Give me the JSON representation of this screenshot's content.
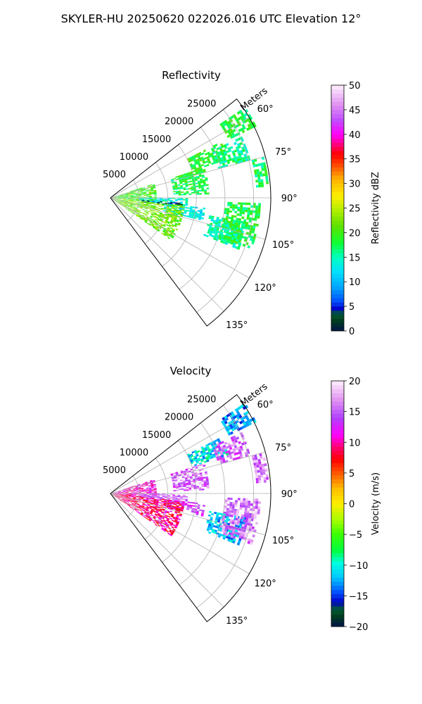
{
  "figure": {
    "suptitle": "SKYLER-HU  20250620  022026.016 UTC Elevation 12°"
  },
  "chart_data": [
    {
      "type": "heatmap",
      "projection": "polar-sector",
      "title": "Reflectivity",
      "range_axis_label": "Meters",
      "range_ticks": [
        5000,
        10000,
        15000,
        20000,
        25000
      ],
      "range_tick_labels": [
        "5000",
        "10000",
        "15000",
        "20000",
        "25000"
      ],
      "range_max": 28000,
      "azimuth_range_deg": [
        52,
        143
      ],
      "azimuth_ticks": [
        60,
        75,
        90,
        105,
        120,
        135
      ],
      "azimuth_tick_labels": [
        "60°",
        "75°",
        "90°",
        "105°",
        "120°",
        "135°"
      ],
      "grid": true,
      "colorbar": {
        "label": "Reflectivity dBZ",
        "min": 0,
        "max": 50,
        "ticks": [
          0,
          5,
          10,
          15,
          20,
          25,
          30,
          35,
          40,
          45,
          50
        ],
        "tick_labels": [
          "0",
          "5",
          "10",
          "15",
          "20",
          "25",
          "30",
          "35",
          "40",
          "45",
          "50"
        ]
      },
      "echo_regions": [
        {
          "az": [
            56,
            64
          ],
          "r": [
            23000,
            28000
          ],
          "value": 18
        },
        {
          "az": [
            63,
            72
          ],
          "r": [
            15000,
            21500
          ],
          "value": 19
        },
        {
          "az": [
            65,
            75
          ],
          "r": [
            19500,
            25000
          ],
          "value": 16
        },
        {
          "az": [
            72,
            88
          ],
          "r": [
            11000,
            17000
          ],
          "value": 18
        },
        {
          "az": [
            75,
            86
          ],
          "r": [
            25500,
            27500
          ],
          "value": 17
        },
        {
          "az": [
            72,
            97
          ],
          "r": [
            0,
            8000
          ],
          "value": 20
        },
        {
          "az": [
            90,
            96
          ],
          "r": [
            5000,
            13500
          ],
          "value": 14
        },
        {
          "az": [
            94,
            98
          ],
          "r": [
            5500,
            12500
          ],
          "value": 4
        },
        {
          "az": [
            96,
            104
          ],
          "r": [
            9500,
            16500
          ],
          "value": 13
        },
        {
          "az": [
            96,
            125
          ],
          "r": [
            0,
            13000
          ],
          "value": 22
        },
        {
          "az": [
            100,
            112
          ],
          "r": [
            17500,
            24000
          ],
          "value": 15
        },
        {
          "az": [
            92,
            110
          ],
          "r": [
            20000,
            26000
          ],
          "value": 18
        }
      ]
    },
    {
      "type": "heatmap",
      "projection": "polar-sector",
      "title": "Velocity",
      "range_axis_label": "Meters",
      "range_ticks": [
        5000,
        10000,
        15000,
        20000,
        25000
      ],
      "range_tick_labels": [
        "5000",
        "10000",
        "15000",
        "20000",
        "25000"
      ],
      "range_max": 28000,
      "azimuth_range_deg": [
        52,
        143
      ],
      "azimuth_ticks": [
        60,
        75,
        90,
        105,
        120,
        135
      ],
      "azimuth_tick_labels": [
        "60°",
        "75°",
        "90°",
        "105°",
        "120°",
        "135°"
      ],
      "grid": true,
      "colorbar": {
        "label": "Velocity (m/s)",
        "min": -20,
        "max": 20,
        "ticks": [
          -20,
          -15,
          -10,
          -5,
          0,
          5,
          10,
          15,
          20
        ],
        "tick_labels": [
          "−20",
          "−15",
          "−10",
          "−5",
          "0",
          "5",
          "10",
          "15",
          "20"
        ]
      },
      "echo_regions": [
        {
          "az": [
            56,
            64
          ],
          "r": [
            23000,
            28000
          ],
          "value": -13
        },
        {
          "az": [
            63,
            72
          ],
          "r": [
            15000,
            21500
          ],
          "value": -11
        },
        {
          "az": [
            65,
            75
          ],
          "r": [
            19500,
            25000
          ],
          "value": 15
        },
        {
          "az": [
            72,
            88
          ],
          "r": [
            11000,
            17000
          ],
          "value": 15
        },
        {
          "az": [
            75,
            86
          ],
          "r": [
            25500,
            27500
          ],
          "value": 16
        },
        {
          "az": [
            72,
            97
          ],
          "r": [
            0,
            8000
          ],
          "value": 11
        },
        {
          "az": [
            90,
            96
          ],
          "r": [
            5000,
            13500
          ],
          "value": 15
        },
        {
          "az": [
            94,
            98
          ],
          "r": [
            5500,
            12500
          ],
          "value": 17
        },
        {
          "az": [
            96,
            104
          ],
          "r": [
            9500,
            16500
          ],
          "value": 14
        },
        {
          "az": [
            96,
            125
          ],
          "r": [
            0,
            13000
          ],
          "value": 9
        },
        {
          "az": [
            100,
            112
          ],
          "r": [
            17500,
            24000
          ],
          "value": -12
        },
        {
          "az": [
            92,
            110
          ],
          "r": [
            20000,
            26000
          ],
          "value": 16
        }
      ]
    }
  ]
}
